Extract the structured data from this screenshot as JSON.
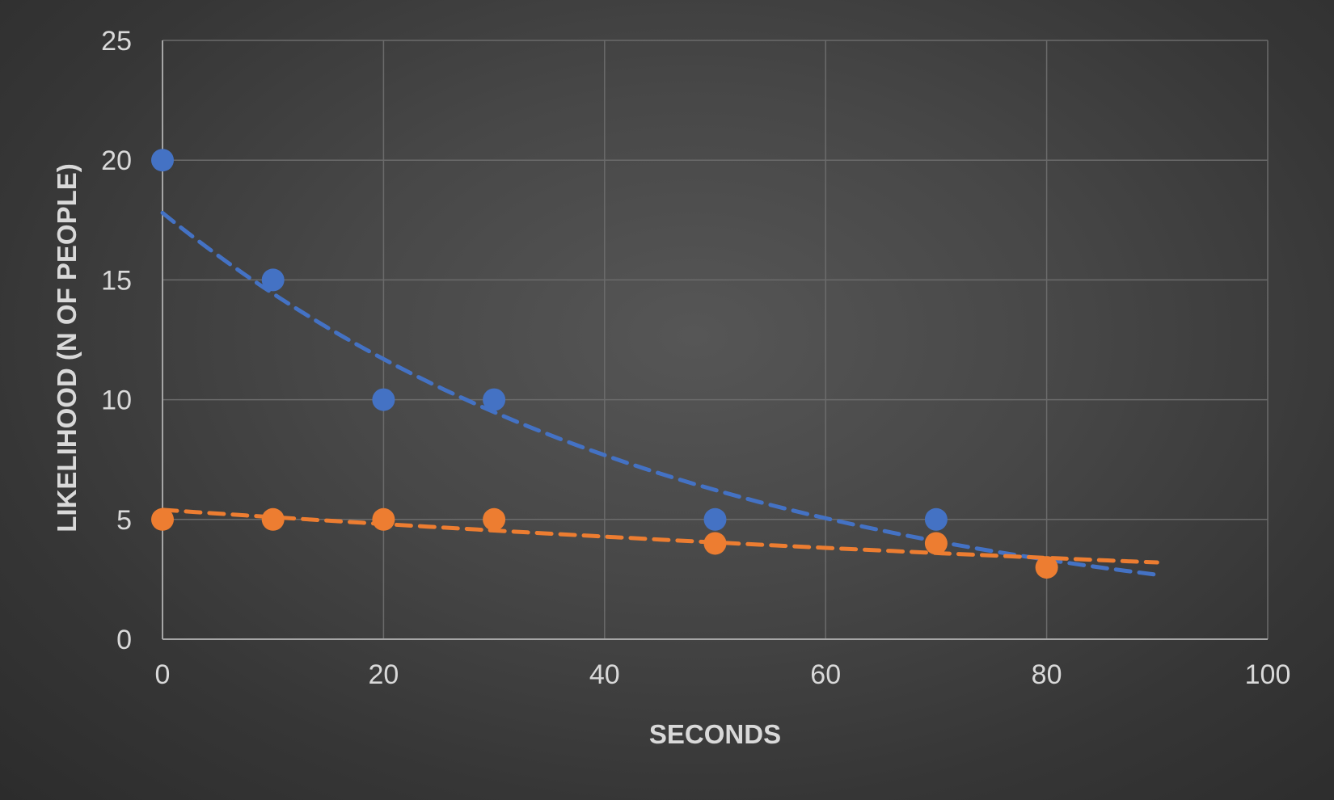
{
  "chart_data": {
    "type": "scatter",
    "title": "",
    "xlabel": "SECONDS",
    "ylabel": "LIKELIHOOD (N OF PEOPLE)",
    "xlim": [
      0,
      100
    ],
    "ylim": [
      0,
      25
    ],
    "x_ticks": [
      "0",
      "20",
      "40",
      "60",
      "80",
      "100"
    ],
    "y_ticks": [
      "0",
      "5",
      "10",
      "15",
      "20",
      "25"
    ],
    "grid": true,
    "legend": "none",
    "series": [
      {
        "color": "#4472c4",
        "points": [
          {
            "x": 0,
            "y": 20
          },
          {
            "x": 10,
            "y": 15
          },
          {
            "x": 20,
            "y": 10
          },
          {
            "x": 30,
            "y": 10
          },
          {
            "x": 50,
            "y": 5
          },
          {
            "x": 70,
            "y": 5
          }
        ],
        "trendline": {
          "type": "exponential",
          "x_range": [
            0,
            90
          ],
          "a": 17.8,
          "b": -0.021,
          "style": "dashed"
        }
      },
      {
        "color": "#ed7d31",
        "points": [
          {
            "x": 0,
            "y": 5
          },
          {
            "x": 10,
            "y": 5
          },
          {
            "x": 20,
            "y": 5
          },
          {
            "x": 30,
            "y": 5
          },
          {
            "x": 50,
            "y": 4
          },
          {
            "x": 70,
            "y": 4
          },
          {
            "x": 80,
            "y": 3
          }
        ],
        "trendline": {
          "type": "exponential",
          "x_range": [
            0,
            90
          ],
          "a": 5.4,
          "b": -0.0058,
          "style": "dashed"
        }
      }
    ]
  }
}
